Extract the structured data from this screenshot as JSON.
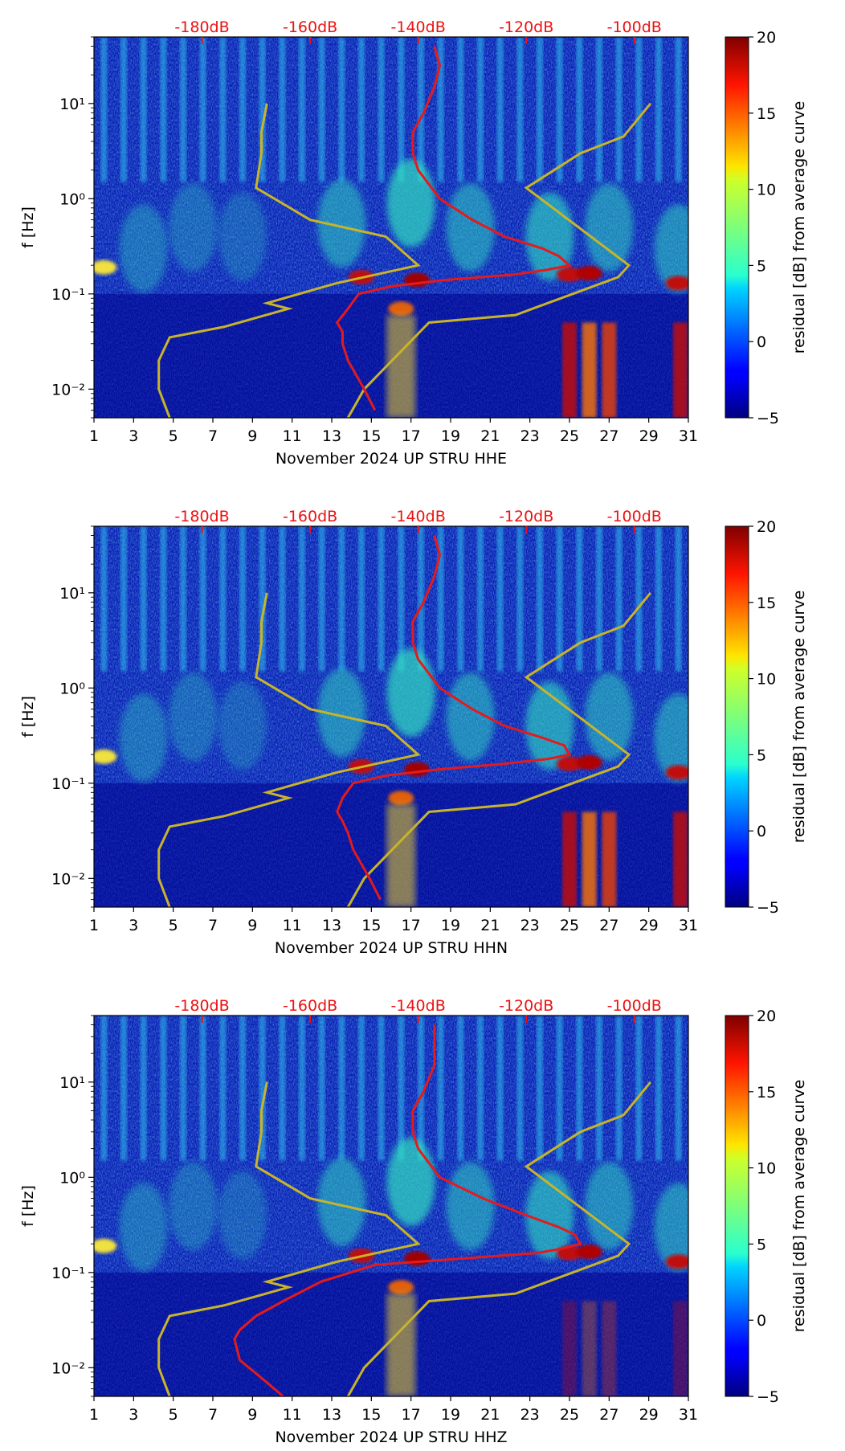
{
  "colors": {
    "noise_curve": "#e41a1c",
    "model_curve": "#c8b42a",
    "db_tick_text": "#ee1111"
  },
  "colorbar": {
    "label": "residual [dB] from average curve",
    "range": [
      -5,
      20
    ],
    "ticks": [
      "20",
      "15",
      "10",
      "5",
      "0",
      "−5"
    ],
    "colormap": "jet"
  },
  "chart_data": [
    {
      "type": "heatmap",
      "title": "",
      "xlabel": "November 2024 UP STRU  HHE",
      "ylabel": "f [Hz]",
      "x_ticks": [
        "1",
        "3",
        "5",
        "7",
        "9",
        "11",
        "13",
        "15",
        "17",
        "19",
        "21",
        "23",
        "25",
        "27",
        "29",
        "31"
      ],
      "y_ticks": [
        "10¹",
        "10⁰",
        "10⁻¹",
        "10⁻²"
      ],
      "top_ticks": [
        "-180dB",
        "-160dB",
        "-140dB",
        "-120dB",
        "-100dB"
      ],
      "xlim": [
        1,
        31
      ],
      "ylim_hz": [
        0.005,
        50
      ],
      "noise_curve_db_vs_hz": [
        [
          -137,
          40
        ],
        [
          -136,
          25
        ],
        [
          -137,
          15
        ],
        [
          -139,
          8
        ],
        [
          -141,
          5
        ],
        [
          -141,
          3
        ],
        [
          -140,
          2
        ],
        [
          -136,
          1
        ],
        [
          -130,
          0.6
        ],
        [
          -124,
          0.4
        ],
        [
          -117,
          0.3
        ],
        [
          -114,
          0.25
        ],
        [
          -112,
          0.2
        ],
        [
          -116,
          0.18
        ],
        [
          -122,
          0.16
        ],
        [
          -135,
          0.14
        ],
        [
          -145,
          0.12
        ],
        [
          -151,
          0.1
        ],
        [
          -153,
          0.07
        ],
        [
          -155,
          0.05
        ],
        [
          -154,
          0.04
        ],
        [
          -154,
          0.03
        ],
        [
          -153,
          0.02
        ],
        [
          -150,
          0.01
        ],
        [
          -148,
          0.006
        ]
      ],
      "model_curves_db_vs_hz": [
        [
          [
            -97,
            10
          ],
          [
            -102,
            4.5
          ],
          [
            -110,
            3
          ],
          [
            -120,
            1.3
          ],
          [
            -101,
            0.2
          ],
          [
            -103,
            0.15
          ],
          [
            -122,
            0.06
          ],
          [
            -138,
            0.05
          ],
          [
            -150,
            0.01
          ],
          [
            -153,
            0.005
          ]
        ],
        [
          [
            -168,
            10
          ],
          [
            -169,
            5
          ],
          [
            -169,
            3
          ],
          [
            -170,
            1.3
          ],
          [
            -160,
            0.6
          ],
          [
            -146,
            0.4
          ],
          [
            -140,
            0.2
          ],
          [
            -155,
            0.13
          ],
          [
            -168,
            0.08
          ],
          [
            -164,
            0.07
          ],
          [
            -176,
            0.045
          ],
          [
            -186,
            0.035
          ],
          [
            -188,
            0.02
          ],
          [
            -188,
            0.01
          ],
          [
            -186,
            0.005
          ]
        ]
      ]
    },
    {
      "type": "heatmap",
      "title": "",
      "xlabel": "November 2024 UP STRU  HHN",
      "ylabel": "f [Hz]",
      "x_ticks": [
        "1",
        "3",
        "5",
        "7",
        "9",
        "11",
        "13",
        "15",
        "17",
        "19",
        "21",
        "23",
        "25",
        "27",
        "29",
        "31"
      ],
      "y_ticks": [
        "10¹",
        "10⁰",
        "10⁻¹",
        "10⁻²"
      ],
      "top_ticks": [
        "-180dB",
        "-160dB",
        "-140dB",
        "-120dB",
        "-100dB"
      ],
      "xlim": [
        1,
        31
      ],
      "ylim_hz": [
        0.005,
        50
      ],
      "noise_curve_db_vs_hz": [
        [
          -137,
          40
        ],
        [
          -136,
          25
        ],
        [
          -137,
          15
        ],
        [
          -139,
          8
        ],
        [
          -141,
          5
        ],
        [
          -141,
          3
        ],
        [
          -140,
          2
        ],
        [
          -136,
          1
        ],
        [
          -130,
          0.6
        ],
        [
          -124,
          0.4
        ],
        [
          -117,
          0.3
        ],
        [
          -113,
          0.25
        ],
        [
          -112,
          0.2
        ],
        [
          -116,
          0.18
        ],
        [
          -124,
          0.16
        ],
        [
          -136,
          0.14
        ],
        [
          -146,
          0.12
        ],
        [
          -152,
          0.1
        ],
        [
          -154,
          0.07
        ],
        [
          -155,
          0.05
        ],
        [
          -154,
          0.04
        ],
        [
          -153,
          0.03
        ],
        [
          -152,
          0.02
        ],
        [
          -149,
          0.01
        ],
        [
          -147,
          0.006
        ]
      ],
      "model_curves_db_vs_hz": [
        [
          [
            -97,
            10
          ],
          [
            -102,
            4.5
          ],
          [
            -110,
            3
          ],
          [
            -120,
            1.3
          ],
          [
            -101,
            0.2
          ],
          [
            -103,
            0.15
          ],
          [
            -122,
            0.06
          ],
          [
            -138,
            0.05
          ],
          [
            -150,
            0.01
          ],
          [
            -153,
            0.005
          ]
        ],
        [
          [
            -168,
            10
          ],
          [
            -169,
            5
          ],
          [
            -169,
            3
          ],
          [
            -170,
            1.3
          ],
          [
            -160,
            0.6
          ],
          [
            -146,
            0.4
          ],
          [
            -140,
            0.2
          ],
          [
            -155,
            0.13
          ],
          [
            -168,
            0.08
          ],
          [
            -164,
            0.07
          ],
          [
            -176,
            0.045
          ],
          [
            -186,
            0.035
          ],
          [
            -188,
            0.02
          ],
          [
            -188,
            0.01
          ],
          [
            -186,
            0.005
          ]
        ]
      ]
    },
    {
      "type": "heatmap",
      "title": "",
      "xlabel": "November 2024 UP STRU  HHZ",
      "ylabel": "f [Hz]",
      "x_ticks": [
        "1",
        "3",
        "5",
        "7",
        "9",
        "11",
        "13",
        "15",
        "17",
        "19",
        "21",
        "23",
        "25",
        "27",
        "29",
        "31"
      ],
      "y_ticks": [
        "10¹",
        "10⁰",
        "10⁻¹",
        "10⁻²"
      ],
      "top_ticks": [
        "-180dB",
        "-160dB",
        "-140dB",
        "-120dB",
        "-100dB"
      ],
      "xlim": [
        1,
        31
      ],
      "ylim_hz": [
        0.005,
        50
      ],
      "noise_curve_db_vs_hz": [
        [
          -137,
          40
        ],
        [
          -137,
          25
        ],
        [
          -137,
          15
        ],
        [
          -139,
          8
        ],
        [
          -141,
          5
        ],
        [
          -141,
          3
        ],
        [
          -140,
          2
        ],
        [
          -136,
          1
        ],
        [
          -128,
          0.6
        ],
        [
          -120,
          0.4
        ],
        [
          -114,
          0.3
        ],
        [
          -111,
          0.25
        ],
        [
          -110,
          0.2
        ],
        [
          -113,
          0.18
        ],
        [
          -118,
          0.16
        ],
        [
          -132,
          0.14
        ],
        [
          -148,
          0.12
        ],
        [
          -158,
          0.08
        ],
        [
          -165,
          0.05
        ],
        [
          -170,
          0.035
        ],
        [
          -173,
          0.025
        ],
        [
          -174,
          0.02
        ],
        [
          -173,
          0.012
        ],
        [
          -168,
          0.007
        ],
        [
          -165,
          0.005
        ]
      ],
      "model_curves_db_vs_hz": [
        [
          [
            -97,
            10
          ],
          [
            -102,
            4.5
          ],
          [
            -110,
            3
          ],
          [
            -120,
            1.3
          ],
          [
            -101,
            0.2
          ],
          [
            -103,
            0.15
          ],
          [
            -122,
            0.06
          ],
          [
            -138,
            0.05
          ],
          [
            -150,
            0.01
          ],
          [
            -153,
            0.005
          ]
        ],
        [
          [
            -168,
            10
          ],
          [
            -169,
            5
          ],
          [
            -169,
            3
          ],
          [
            -170,
            1.3
          ],
          [
            -160,
            0.6
          ],
          [
            -146,
            0.4
          ],
          [
            -140,
            0.2
          ],
          [
            -155,
            0.13
          ],
          [
            -168,
            0.08
          ],
          [
            -164,
            0.07
          ],
          [
            -176,
            0.045
          ],
          [
            -186,
            0.035
          ],
          [
            -188,
            0.02
          ],
          [
            -188,
            0.01
          ],
          [
            -186,
            0.005
          ]
        ]
      ]
    }
  ]
}
